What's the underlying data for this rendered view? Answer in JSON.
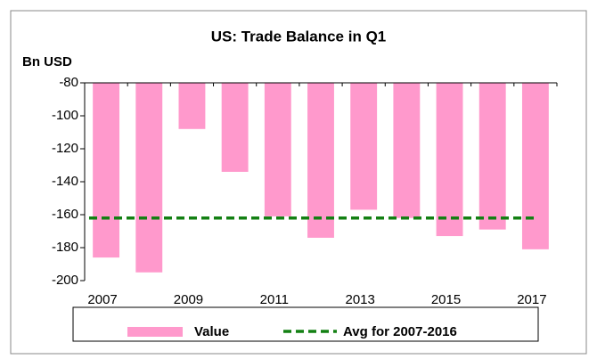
{
  "chart_data": {
    "type": "bar",
    "title": "US: Trade Balance in Q1",
    "y_label": "Bn USD",
    "categories": [
      "2007",
      null,
      "2009",
      null,
      "2011",
      null,
      "2013",
      null,
      "2015",
      null,
      "2017"
    ],
    "series": [
      {
        "name": "Value",
        "color": "#ff99cc",
        "values": [
          -186,
          -195,
          -108,
          -134,
          -161,
          -174,
          -157,
          -162,
          -173,
          -169,
          -181
        ]
      }
    ],
    "average": {
      "name": "Avg for 2007-2016",
      "value": -162,
      "color": "#138013"
    },
    "ylim": [
      -200,
      -80
    ],
    "yticks": [
      -200,
      -180,
      -160,
      -140,
      -120,
      -100,
      -80
    ]
  }
}
